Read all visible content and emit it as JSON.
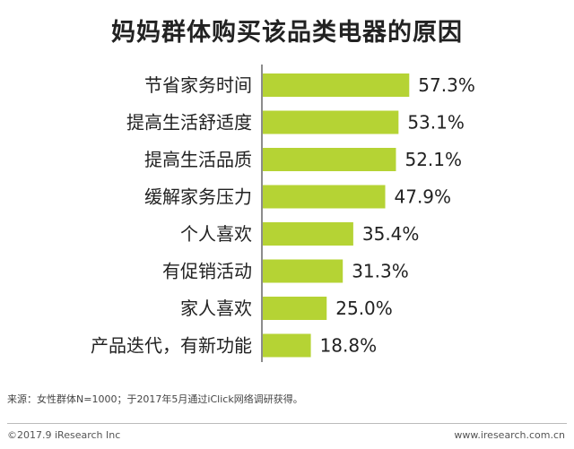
{
  "chart_data": {
    "type": "bar",
    "orientation": "horizontal",
    "title": "妈妈群体购买该品类电器的原因",
    "categories": [
      "节省家务时间",
      "提高生活舒适度",
      "提高生活品质",
      "缓解家务压力",
      "个人喜欢",
      "有促销活动",
      "家人喜欢",
      "产品迭代，有新功能"
    ],
    "values": [
      57.3,
      53.1,
      52.1,
      47.9,
      35.4,
      31.3,
      25.0,
      18.8
    ],
    "value_labels": [
      "57.3%",
      "53.1%",
      "52.1%",
      "47.9%",
      "35.4%",
      "31.3%",
      "25.0%",
      "18.8%"
    ],
    "xlim": [
      0,
      100
    ],
    "grid": false,
    "bar_color": "#b5d334"
  },
  "source_text": "来源：女性群体N=1000；于2017年5月通过iClick网络调研获得。",
  "footer": {
    "copyright": "©2017.9 iResearch Inc",
    "website": "www.iresearch.com.cn"
  }
}
